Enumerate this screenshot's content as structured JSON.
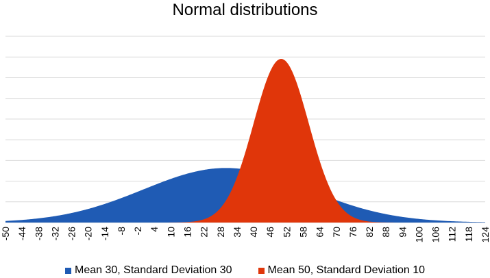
{
  "chart_data": {
    "type": "area",
    "title": "Normal distributions",
    "xlabel": "",
    "ylabel": "",
    "grid": true,
    "legend_position": "bottom",
    "x_ticks": [
      -50,
      -44,
      -38,
      -32,
      -26,
      -20,
      -14,
      -8,
      -2,
      4,
      10,
      16,
      22,
      28,
      34,
      40,
      46,
      52,
      58,
      64,
      70,
      76,
      82,
      88,
      94,
      100,
      106,
      112,
      118,
      124
    ],
    "xlim": [
      -50,
      124
    ],
    "y_gridlines": 10,
    "series": [
      {
        "name": "Mean 30, Standard Deviation 30",
        "mean": 30,
        "std": 30,
        "color": "#1f5bb4"
      },
      {
        "name": "Mean 50, Standard Deviation 10",
        "mean": 50,
        "std": 10,
        "color": "#e0360a"
      }
    ]
  }
}
